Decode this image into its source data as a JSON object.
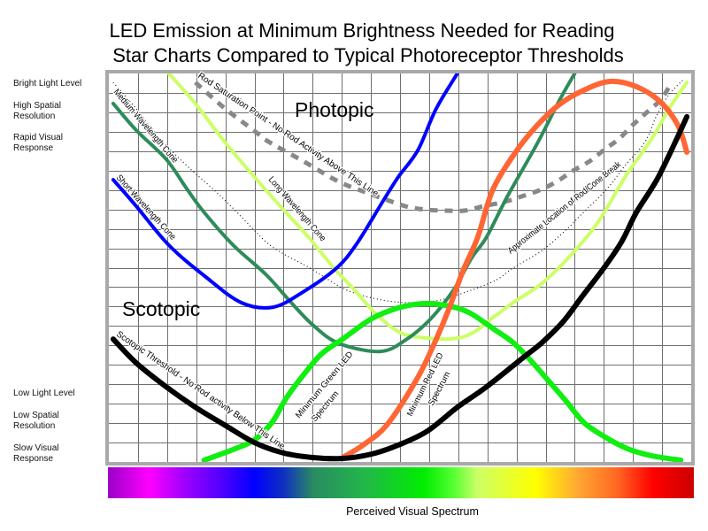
{
  "side_notes": {
    "bright": [
      [
        "Bright Light Level"
      ],
      [
        "High Spatial",
        "Resolution"
      ],
      [
        "Rapid Visual",
        "Response"
      ]
    ],
    "low": [
      [
        "Low Light Level"
      ],
      [
        "Low Spatial",
        "Resolution"
      ],
      [
        "Slow Visual",
        "Response"
      ]
    ]
  },
  "chart_data": {
    "type": "line",
    "title_lines": [
      "LED Emission at Minimum Brightness Needed for Reading",
      "Star Charts Compared to Typical Photoreceptor Thresholds"
    ],
    "xlabel": "Perceived Visual Spectrum",
    "ylabel": "",
    "xlim": [
      0,
      20
    ],
    "ylim": [
      0,
      20
    ],
    "grid": true,
    "region_labels": [
      "Photopic",
      "Scotopic"
    ],
    "series": [
      {
        "label_lines": [
          "Rod Saturation Point - No Rod Activity Above This Line"
        ],
        "color": "#888888",
        "points": [
          [
            2.97,
            19.54
          ],
          [
            3.97,
            18.22
          ],
          [
            5.0,
            17.04
          ],
          [
            5.48,
            16.49
          ],
          [
            6.67,
            15.49
          ],
          [
            7.88,
            14.44
          ],
          [
            8.88,
            13.85
          ],
          [
            9.64,
            13.44
          ],
          [
            10.3,
            13.12
          ],
          [
            10.94,
            12.98
          ],
          [
            11.55,
            12.94
          ],
          [
            12.21,
            12.94
          ],
          [
            12.88,
            13.17
          ],
          [
            13.58,
            13.39
          ],
          [
            14.18,
            13.67
          ],
          [
            14.79,
            13.99
          ],
          [
            15.39,
            14.44
          ],
          [
            15.94,
            14.99
          ],
          [
            16.52,
            15.49
          ],
          [
            17.06,
            16.13
          ],
          [
            17.52,
            16.63
          ],
          [
            18.03,
            17.4
          ],
          [
            18.48,
            18.0
          ],
          [
            18.97,
            18.68
          ],
          [
            19.33,
            19.54
          ]
        ]
      },
      {
        "label_lines": [
          "Approximate Location of Rod/Cone Break"
        ],
        "color": "#000000",
        "points": [
          [
            0.15,
            19.54
          ],
          [
            0.94,
            18.18
          ],
          [
            1.76,
            16.63
          ],
          [
            2.67,
            15.26
          ],
          [
            3.79,
            13.76
          ],
          [
            4.7,
            12.39
          ],
          [
            5.39,
            11.34
          ],
          [
            6.0,
            10.71
          ],
          [
            6.91,
            9.98
          ],
          [
            8.12,
            8.88
          ],
          [
            9.24,
            8.38
          ],
          [
            10.24,
            8.2
          ],
          [
            11.24,
            8.29
          ],
          [
            12.27,
            8.75
          ],
          [
            13.27,
            9.34
          ],
          [
            13.88,
            9.98
          ],
          [
            14.88,
            10.89
          ],
          [
            15.7,
            11.94
          ],
          [
            16.21,
            12.71
          ],
          [
            17.12,
            14.08
          ],
          [
            17.73,
            15.26
          ],
          [
            18.42,
            16.49
          ],
          [
            18.82,
            17.86
          ],
          [
            19.24,
            18.91
          ],
          [
            19.73,
            19.68
          ]
        ]
      },
      {
        "label_lines": [
          "Long Wavelength Cone"
        ],
        "color": "#ccff66",
        "points": [
          [
            2.06,
            20.0
          ],
          [
            2.97,
            18.45
          ],
          [
            3.97,
            16.49
          ],
          [
            5.0,
            14.67
          ],
          [
            6.0,
            12.98
          ],
          [
            6.91,
            11.48
          ],
          [
            7.73,
            9.98
          ],
          [
            8.42,
            8.88
          ],
          [
            9.12,
            7.7
          ],
          [
            9.85,
            6.79
          ],
          [
            10.45,
            6.47
          ],
          [
            11.67,
            6.33
          ],
          [
            12.45,
            6.61
          ],
          [
            13.27,
            7.52
          ],
          [
            13.97,
            8.29
          ],
          [
            14.88,
            9.2
          ],
          [
            15.91,
            10.71
          ],
          [
            16.82,
            12.39
          ],
          [
            17.73,
            14.67
          ],
          [
            18.64,
            16.63
          ],
          [
            19.24,
            18.18
          ],
          [
            19.85,
            19.54
          ]
        ]
      },
      {
        "label_lines": [
          "Medium Wavelength Cone"
        ],
        "color": "#2e8b5a",
        "points": [
          [
            0.15,
            18.45
          ],
          [
            0.94,
            17.08
          ],
          [
            1.97,
            15.58
          ],
          [
            2.67,
            14.08
          ],
          [
            3.27,
            12.85
          ],
          [
            4.27,
            11.16
          ],
          [
            5.39,
            9.66
          ],
          [
            6.21,
            8.29
          ],
          [
            7.0,
            7.06
          ],
          [
            7.91,
            6.1
          ],
          [
            9.33,
            5.69
          ],
          [
            10.24,
            6.33
          ],
          [
            11.06,
            7.38
          ],
          [
            11.85,
            8.88
          ],
          [
            12.45,
            10.48
          ],
          [
            12.97,
            11.57
          ],
          [
            13.67,
            13.62
          ],
          [
            14.7,
            16.36
          ],
          [
            15.48,
            18.63
          ],
          [
            16.0,
            20.0
          ]
        ]
      },
      {
        "label_lines": [
          "Short Wavelength Cone"
        ],
        "color": "#0000ff",
        "points": [
          [
            0.15,
            14.53
          ],
          [
            0.94,
            13.17
          ],
          [
            2.06,
            11.16
          ],
          [
            3.33,
            9.52
          ],
          [
            4.55,
            8.2
          ],
          [
            5.64,
            7.97
          ],
          [
            6.67,
            8.75
          ],
          [
            7.82,
            9.98
          ],
          [
            8.52,
            11.25
          ],
          [
            9.42,
            13.44
          ],
          [
            9.94,
            14.67
          ],
          [
            10.61,
            16.04
          ],
          [
            11.24,
            18.18
          ],
          [
            11.97,
            20.0
          ]
        ]
      },
      {
        "label_lines": [
          "Minimum Green LED",
          "Spectrum"
        ],
        "color": "#11ee11",
        "points": [
          [
            3.27,
            0.09
          ],
          [
            4.27,
            0.64
          ],
          [
            5.0,
            1.14
          ],
          [
            5.61,
            2.05
          ],
          [
            6.09,
            3.28
          ],
          [
            6.7,
            4.51
          ],
          [
            7.3,
            5.56
          ],
          [
            8.03,
            6.33
          ],
          [
            9.03,
            7.38
          ],
          [
            9.94,
            7.93
          ],
          [
            10.76,
            8.15
          ],
          [
            11.55,
            8.06
          ],
          [
            12.36,
            7.7
          ],
          [
            13.27,
            6.79
          ],
          [
            13.88,
            6.15
          ],
          [
            14.48,
            5.24
          ],
          [
            15.09,
            4.19
          ],
          [
            15.7,
            3.14
          ],
          [
            16.3,
            2.05
          ],
          [
            17.0,
            1.32
          ],
          [
            17.82,
            0.68
          ],
          [
            18.64,
            0.32
          ],
          [
            19.64,
            0.09
          ]
        ]
      },
      {
        "label_lines": [
          "Minimum Red LED",
          "Spectrum"
        ],
        "color": "#ff6633",
        "points": [
          [
            8.03,
            0.23
          ],
          [
            8.73,
            0.87
          ],
          [
            9.55,
            1.91
          ],
          [
            10.55,
            4.19
          ],
          [
            11.15,
            6.01
          ],
          [
            11.67,
            7.84
          ],
          [
            12.15,
            9.79
          ],
          [
            12.67,
            11.57
          ],
          [
            13.18,
            13.99
          ],
          [
            13.97,
            15.95
          ],
          [
            14.7,
            17.31
          ],
          [
            15.48,
            18.41
          ],
          [
            16.3,
            19.13
          ],
          [
            17.21,
            19.59
          ],
          [
            18.12,
            19.32
          ],
          [
            18.94,
            18.54
          ],
          [
            19.55,
            17.31
          ],
          [
            19.85,
            15.95
          ]
        ]
      },
      {
        "label_lines": [
          "Scotopic Threshold - No Rod activity Below This Line"
        ],
        "color": "#000000",
        "points": [
          [
            0.15,
            6.33
          ],
          [
            0.94,
            5.1
          ],
          [
            1.97,
            3.87
          ],
          [
            2.97,
            2.82
          ],
          [
            3.97,
            1.91
          ],
          [
            5.0,
            1.0
          ],
          [
            6.0,
            0.46
          ],
          [
            7.0,
            0.23
          ],
          [
            8.03,
            0.18
          ],
          [
            9.03,
            0.41
          ],
          [
            9.94,
            0.87
          ],
          [
            10.94,
            1.59
          ],
          [
            11.97,
            2.82
          ],
          [
            12.97,
            3.87
          ],
          [
            14.27,
            5.42
          ],
          [
            14.88,
            6.15
          ],
          [
            15.61,
            7.24
          ],
          [
            16.3,
            8.61
          ],
          [
            17.0,
            9.98
          ],
          [
            17.61,
            11.34
          ],
          [
            18.12,
            12.85
          ],
          [
            18.82,
            14.53
          ],
          [
            19.42,
            16.36
          ],
          [
            19.85,
            17.77
          ]
        ]
      }
    ]
  }
}
